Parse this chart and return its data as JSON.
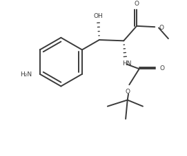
{
  "bg_color": "#ffffff",
  "line_color": "#3a3a3a",
  "text_color": "#3a3a3a",
  "bond_lw": 1.4,
  "figsize": [
    2.71,
    2.28
  ],
  "dpi": 100,
  "xlim": [
    0,
    10
  ],
  "ylim": [
    0,
    8.5
  ]
}
